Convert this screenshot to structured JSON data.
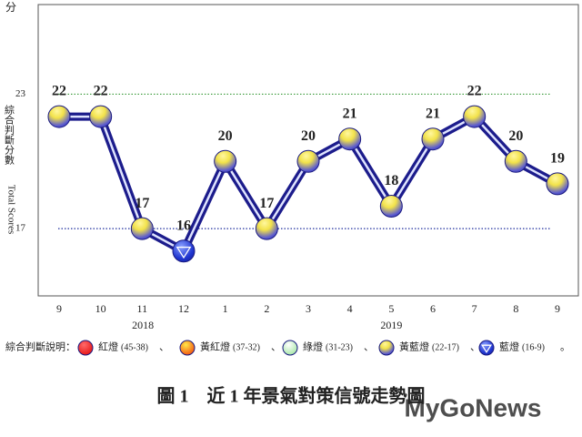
{
  "chart_data": {
    "type": "line",
    "y_unit": "分",
    "y_label": "綜合判斷分數",
    "y_label_en": "Total Scores",
    "categories": [
      "9",
      "10",
      "11",
      "12",
      "1",
      "2",
      "3",
      "4",
      "5",
      "6",
      "7",
      "8",
      "9"
    ],
    "years": [
      "2018",
      "2019"
    ],
    "series": [
      {
        "name": "綜合判斷分數",
        "color": "#1c1c8c",
        "values": [
          22,
          22,
          17,
          16,
          20,
          17,
          20,
          21,
          18,
          21,
          22,
          20,
          19
        ],
        "markers": [
          "yellow-blue",
          "yellow-blue",
          "yellow-blue",
          "blue",
          "yellow-blue",
          "yellow-blue",
          "yellow-blue",
          "yellow-blue",
          "yellow-blue",
          "yellow-blue",
          "yellow-blue",
          "yellow-blue",
          "yellow-blue"
        ]
      }
    ],
    "ylim": [
      14,
      27
    ],
    "yticks": [
      17,
      23
    ],
    "grid_colors": [
      "#1f2f9e",
      "#3a9a3a"
    ],
    "legend": {
      "title": "綜合判斷說明：",
      "separator": "、",
      "end": "。",
      "items": [
        {
          "marker": "red",
          "label": "紅燈",
          "range": "(45-38)"
        },
        {
          "marker": "yellow-red",
          "label": "黃紅燈",
          "range": "(37-32)"
        },
        {
          "marker": "green",
          "label": "綠燈",
          "range": "(31-23)"
        },
        {
          "marker": "yellow-blue",
          "label": "黃藍燈",
          "range": "(22-17)"
        },
        {
          "marker": "blue",
          "label": "藍燈",
          "range": "(16-9)"
        }
      ]
    },
    "caption": "圖 1　近 1 年景氣對策信號走勢圖",
    "watermark": "MyGoNews"
  }
}
